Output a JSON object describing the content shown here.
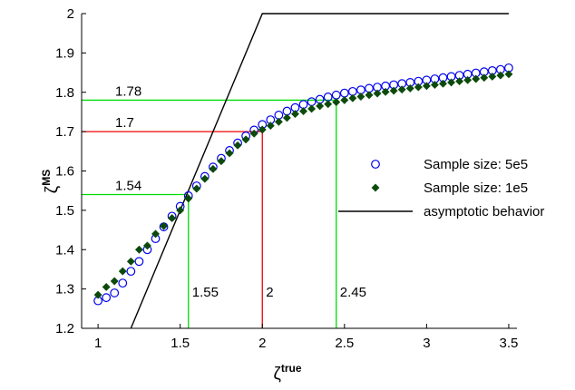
{
  "chart_data": {
    "type": "scatter",
    "xlabel": {
      "base": "ζ",
      "sup": "true"
    },
    "ylabel": {
      "base": "ζ",
      "sup": "MS"
    },
    "xlim": [
      0.9,
      3.55
    ],
    "ylim": [
      1.2,
      2.0
    ],
    "x_ticks": [
      "1",
      "1.5",
      "2",
      "2.5",
      "3",
      "3.5"
    ],
    "x_tick_values": [
      1,
      1.5,
      2,
      2.5,
      3,
      3.5
    ],
    "y_ticks": [
      "1.2",
      "1.3",
      "1.4",
      "1.5",
      "1.6",
      "1.7",
      "1.8",
      "1.9",
      "2"
    ],
    "y_tick_values": [
      1.2,
      1.3,
      1.4,
      1.5,
      1.6,
      1.7,
      1.8,
      1.9,
      2.0
    ],
    "legend_position": "right-middle",
    "series": [
      {
        "name": "Sample size: 5e5",
        "marker": "circle-open",
        "color": "#0000ee",
        "x": [
          1.0,
          1.05,
          1.1,
          1.15,
          1.2,
          1.25,
          1.3,
          1.35,
          1.4,
          1.45,
          1.5,
          1.55,
          1.6,
          1.65,
          1.7,
          1.75,
          1.8,
          1.85,
          1.9,
          1.95,
          2.0,
          2.05,
          2.1,
          2.15,
          2.2,
          2.25,
          2.3,
          2.35,
          2.4,
          2.45,
          2.5,
          2.55,
          2.6,
          2.65,
          2.7,
          2.75,
          2.8,
          2.85,
          2.9,
          2.95,
          3.0,
          3.05,
          3.1,
          3.15,
          3.2,
          3.25,
          3.3,
          3.35,
          3.4,
          3.45,
          3.5
        ],
        "values": [
          1.27,
          1.278,
          1.29,
          1.315,
          1.345,
          1.37,
          1.4,
          1.428,
          1.458,
          1.485,
          1.51,
          1.537,
          1.562,
          1.586,
          1.61,
          1.632,
          1.652,
          1.671,
          1.689,
          1.704,
          1.718,
          1.73,
          1.742,
          1.752,
          1.761,
          1.769,
          1.776,
          1.782,
          1.788,
          1.793,
          1.798,
          1.802,
          1.806,
          1.81,
          1.813,
          1.816,
          1.819,
          1.822,
          1.825,
          1.828,
          1.831,
          1.834,
          1.837,
          1.84,
          1.843,
          1.846,
          1.849,
          1.852,
          1.855,
          1.858,
          1.862
        ]
      },
      {
        "name": "Sample size: 1e5",
        "marker": "diamond",
        "color": "#0b4a0b",
        "x": [
          1.0,
          1.05,
          1.1,
          1.15,
          1.2,
          1.25,
          1.3,
          1.35,
          1.4,
          1.45,
          1.5,
          1.55,
          1.6,
          1.65,
          1.7,
          1.75,
          1.8,
          1.85,
          1.9,
          1.95,
          2.0,
          2.05,
          2.1,
          2.15,
          2.2,
          2.25,
          2.3,
          2.35,
          2.4,
          2.45,
          2.5,
          2.55,
          2.6,
          2.65,
          2.7,
          2.75,
          2.8,
          2.85,
          2.9,
          2.95,
          3.0,
          3.05,
          3.1,
          3.15,
          3.2,
          3.25,
          3.3,
          3.35,
          3.4,
          3.45,
          3.5
        ],
        "values": [
          1.285,
          1.305,
          1.32,
          1.345,
          1.37,
          1.4,
          1.41,
          1.44,
          1.46,
          1.48,
          1.5,
          1.53,
          1.555,
          1.58,
          1.605,
          1.625,
          1.645,
          1.665,
          1.68,
          1.695,
          1.705,
          1.715,
          1.725,
          1.735,
          1.745,
          1.752,
          1.758,
          1.765,
          1.77,
          1.775,
          1.78,
          1.785,
          1.789,
          1.793,
          1.797,
          1.801,
          1.804,
          1.807,
          1.81,
          1.813,
          1.816,
          1.819,
          1.822,
          1.825,
          1.828,
          1.831,
          1.834,
          1.837,
          1.84,
          1.843,
          1.846
        ]
      },
      {
        "name": "asymptotic behavior",
        "marker": "line",
        "color": "#000000",
        "x": [
          1.2,
          2.0,
          3.5
        ],
        "values": [
          1.2,
          2.0,
          2.0
        ]
      }
    ],
    "annotations": {
      "guides": [
        {
          "x": 1.55,
          "y": 1.54,
          "color": "#00dd00",
          "xlabel": "1.55",
          "ylabel": "1.54"
        },
        {
          "x": 2.0,
          "y": 1.7,
          "color": "#ee0000",
          "xlabel": "2",
          "ylabel": "1.7"
        },
        {
          "x": 2.45,
          "y": 1.78,
          "color": "#00dd00",
          "xlabel": "2.45",
          "ylabel": "1.78"
        }
      ]
    }
  }
}
